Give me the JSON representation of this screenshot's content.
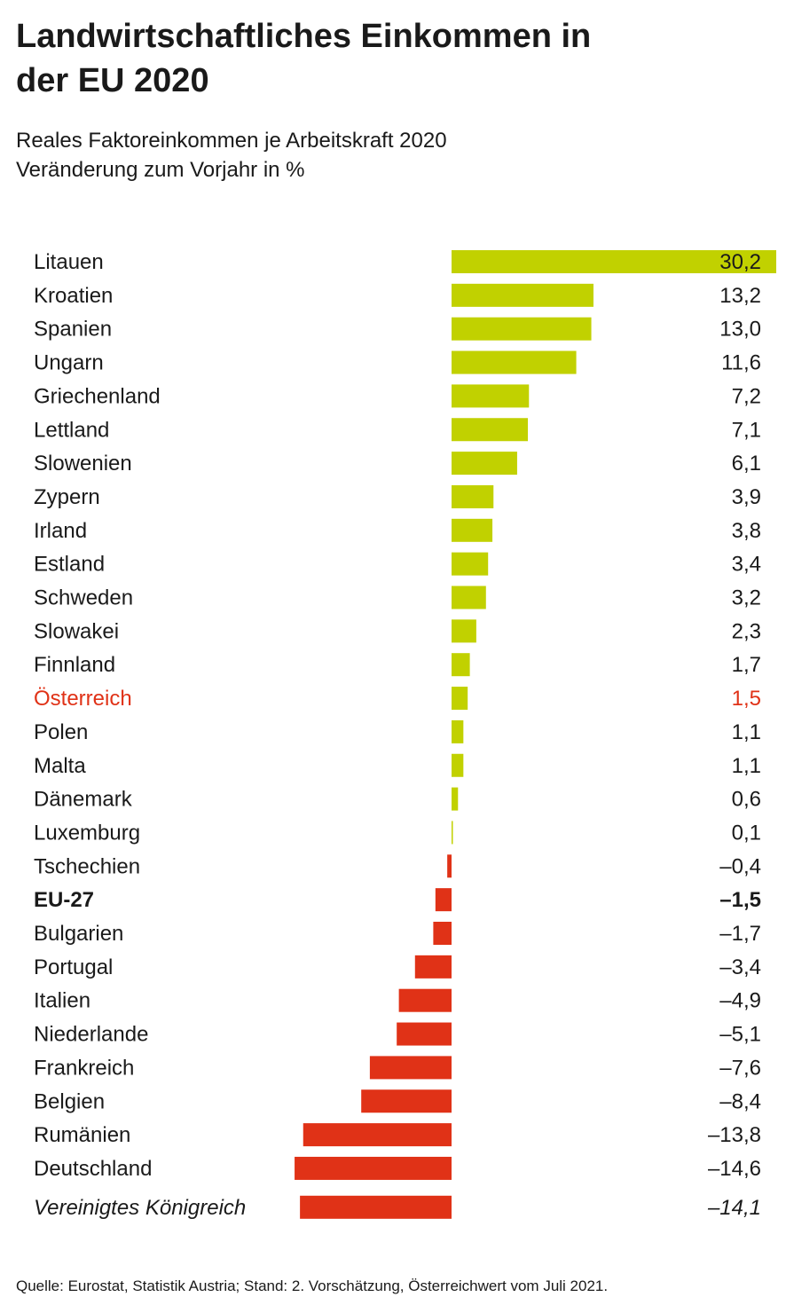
{
  "header": {
    "title_line1": "Landwirtschaftliches Einkommen in",
    "title_line2": "der EU 2020",
    "subtitle_line1": "Reales Faktoreinkommen je Arbeitskraft 2020",
    "subtitle_line2": "Veränderung zum Vorjahr in %"
  },
  "colors": {
    "positive": "#c1d100",
    "negative": "#e03217",
    "highlight": "#e03217",
    "text": "#1a1a1a"
  },
  "chart_data": {
    "type": "bar",
    "orientation": "horizontal",
    "title": "Landwirtschaftliches Einkommen in der EU 2020",
    "subtitle": "Reales Faktoreinkommen je Arbeitskraft 2020 – Veränderung zum Vorjahr in %",
    "xlabel": "",
    "ylabel": "",
    "categories": [
      "Litauen",
      "Kroatien",
      "Spanien",
      "Ungarn",
      "Griechenland",
      "Lettland",
      "Slowenien",
      "Zypern",
      "Irland",
      "Estland",
      "Schweden",
      "Slowakei",
      "Finnland",
      "Österreich",
      "Polen",
      "Malta",
      "Dänemark",
      "Luxemburg",
      "Tschechien",
      "EU-27",
      "Bulgarien",
      "Portugal",
      "Italien",
      "Niederlande",
      "Frankreich",
      "Belgien",
      "Rumänien",
      "Deutschland",
      "Vereinigtes Königreich"
    ],
    "values": [
      30.2,
      13.2,
      13.0,
      11.6,
      7.2,
      7.1,
      6.1,
      3.9,
      3.8,
      3.4,
      3.2,
      2.3,
      1.7,
      1.5,
      1.1,
      1.1,
      0.6,
      0.1,
      -0.4,
      -1.5,
      -1.7,
      -3.4,
      -4.9,
      -5.1,
      -7.6,
      -8.4,
      -13.8,
      -14.6,
      -14.1
    ],
    "value_labels": [
      "30,2",
      "13,2",
      "13,0",
      "11,6",
      "7,2",
      "7,1",
      "6,1",
      "3,9",
      "3,8",
      "3,4",
      "3,2",
      "2,3",
      "1,7",
      "1,5",
      "1,1",
      "1,1",
      "0,6",
      "0,1",
      "–0,4",
      "–1,5",
      "–1,7",
      "–3,4",
      "–4,9",
      "–5,1",
      "–7,6",
      "–8,4",
      "–13,8",
      "–14,6",
      "–14,1"
    ],
    "styles": [
      "normal",
      "normal",
      "normal",
      "normal",
      "normal",
      "normal",
      "normal",
      "normal",
      "normal",
      "normal",
      "normal",
      "normal",
      "normal",
      "highlight",
      "normal",
      "normal",
      "normal",
      "normal",
      "normal",
      "bold",
      "normal",
      "normal",
      "normal",
      "normal",
      "normal",
      "normal",
      "normal",
      "normal",
      "italic"
    ],
    "xlim": [
      -14.6,
      30.2
    ]
  },
  "footer": {
    "source": "Quelle: Eurostat, Statistik Austria; Stand: 2. Vorschätzung, Österreichwert vom Juli 2021."
  }
}
